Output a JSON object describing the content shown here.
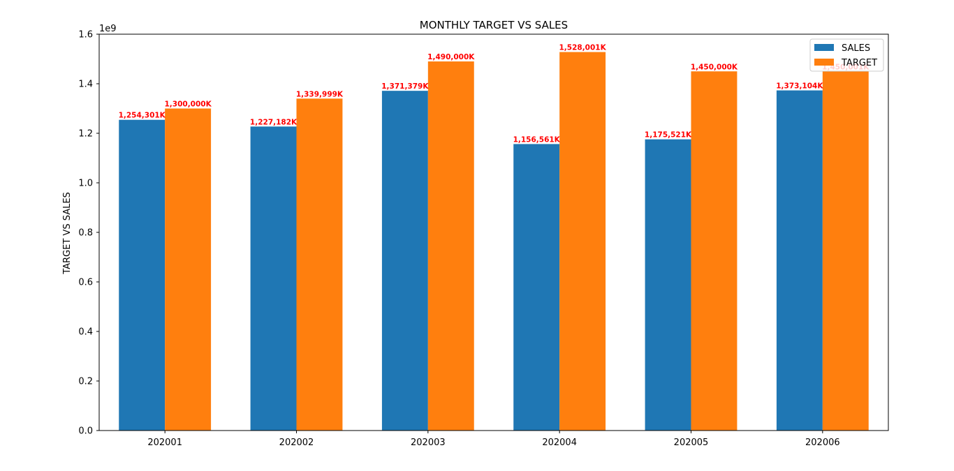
{
  "chart_data": {
    "type": "bar",
    "title": "MONTHLY TARGET VS SALES",
    "xlabel": "",
    "ylabel": "TARGET VS SALES",
    "y_offset_label": "1e9",
    "categories": [
      "202001",
      "202002",
      "202003",
      "202004",
      "202005",
      "202006"
    ],
    "series": [
      {
        "name": "SALES",
        "color": "#1f77b4",
        "values": [
          1254301000,
          1227182000,
          1371379000,
          1156561000,
          1175521000,
          1373104000
        ],
        "data_labels": [
          "1,254,301K",
          "1,227,182K",
          "1,371,379K",
          "1,156,561K",
          "1,175,521K",
          "1,373,104K"
        ]
      },
      {
        "name": "TARGET",
        "color": "#ff7f0e",
        "values": [
          1300000000,
          1339999000,
          1490000000,
          1528001000,
          1450000000,
          1450001000
        ],
        "data_labels": [
          "1,300,000K",
          "1,339,999K",
          "1,490,000K",
          "1,528,001K",
          "1,450,000K",
          "1,450,001K"
        ]
      }
    ],
    "ylim": [
      0,
      1600000000
    ],
    "yticks": [
      {
        "value": 0,
        "label": "0.0"
      },
      {
        "value": 200000000,
        "label": "0.2"
      },
      {
        "value": 400000000,
        "label": "0.4"
      },
      {
        "value": 600000000,
        "label": "0.6"
      },
      {
        "value": 800000000,
        "label": "0.8"
      },
      {
        "value": 1000000000,
        "label": "1.0"
      },
      {
        "value": 1200000000,
        "label": "1.2"
      },
      {
        "value": 1400000000,
        "label": "1.4"
      },
      {
        "value": 1600000000,
        "label": "1.6"
      }
    ],
    "data_label_color": "#ff0000",
    "grid": false,
    "legend_position": "top-right"
  }
}
